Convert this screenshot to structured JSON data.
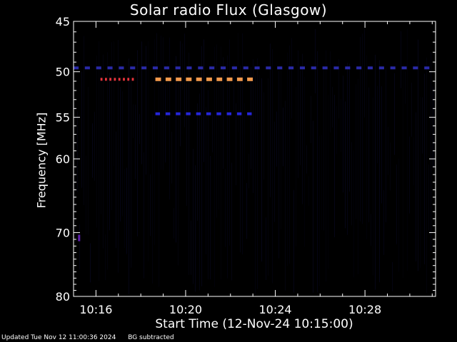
{
  "chart_data": {
    "type": "heatmap",
    "title": "Solar radio Flux (Glasgow)",
    "ylabel": "Frequency [MHz]",
    "xlabel": "Start Time (12-Nov-24 10:15:00)",
    "x_unit": "minutes after 10:15:00",
    "xlim": [
      0.0,
      16.15
    ],
    "ylim": [
      45,
      80
    ],
    "y_scale": "log",
    "x_ticks": [
      {
        "value": 1.0,
        "label": "10:16"
      },
      {
        "value": 5.0,
        "label": "10:20"
      },
      {
        "value": 9.0,
        "label": "10:24"
      },
      {
        "value": 13.0,
        "label": "10:28"
      }
    ],
    "y_ticks": [
      45,
      50,
      55,
      60,
      70,
      80
    ],
    "features": [
      {
        "name": "dashed band",
        "freq_mhz": 50.8,
        "t_start": 1.2,
        "t_end": 2.8,
        "dashes": 8,
        "color": "#e8343c"
      },
      {
        "name": "dashed band",
        "freq_mhz": 50.8,
        "t_start": 3.65,
        "t_end": 8.2,
        "dashes": 10,
        "color": "#f49a4c"
      },
      {
        "name": "dashed band",
        "freq_mhz": 54.6,
        "t_start": 3.65,
        "t_end": 8.2,
        "dashes": 10,
        "color": "#2525d9"
      },
      {
        "name": "dashed band",
        "freq_mhz": 49.6,
        "t_start": 0.0,
        "t_end": 16.15,
        "dashes": 32,
        "color": "#2a2aa8"
      },
      {
        "name": "spot",
        "freq_mhz": 70.8,
        "t_start": 0.2,
        "t_end": 0.32,
        "dashes": 1,
        "color": "#6020b0"
      }
    ],
    "colors": {
      "background": "#000000",
      "noise": "#0c0c30",
      "axis": "#ffffff"
    }
  },
  "footer": {
    "updated": "Updated Tue Nov 12 11:00:36 2024",
    "note": "BG subtracted"
  }
}
